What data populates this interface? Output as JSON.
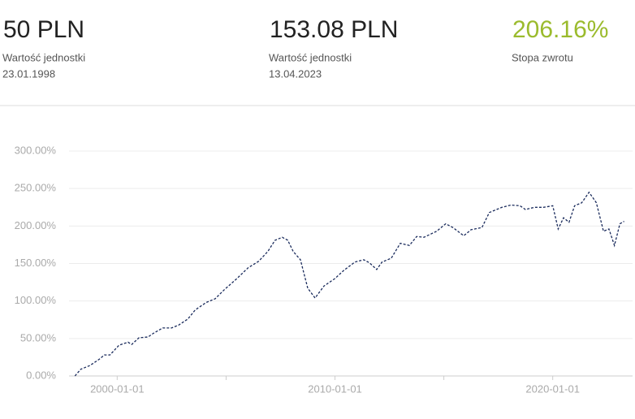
{
  "header": {
    "stats": [
      {
        "value": "50 PLN",
        "label": "Wartość jednostki",
        "date": "23.01.1998"
      },
      {
        "value": "153.08 PLN",
        "label": "Wartość jednostki",
        "date": "13.04.2023"
      },
      {
        "value": "206.16%",
        "label": "Stopa zwrotu",
        "color": "#9bbb2d"
      }
    ]
  },
  "chart_data": {
    "type": "line",
    "x": [
      "1998-01-23",
      "1998-05-01",
      "1998-10-01",
      "1999-03-01",
      "1999-06-01",
      "1999-09-01",
      "2000-02-01",
      "2000-07-01",
      "2000-09-01",
      "2001-01-01",
      "2001-06-01",
      "2001-09-01",
      "2002-02-01",
      "2002-07-01",
      "2002-11-01",
      "2003-04-01",
      "2003-08-01",
      "2004-02-01",
      "2004-07-01",
      "2004-12-01",
      "2005-07-01",
      "2006-01-01",
      "2006-07-01",
      "2006-12-01",
      "2007-04-01",
      "2007-08-01",
      "2007-11-01",
      "2008-02-01",
      "2008-06-01",
      "2008-10-01",
      "2009-02-01",
      "2009-07-01",
      "2010-01-01",
      "2010-06-01",
      "2010-12-01",
      "2011-05-01",
      "2011-08-01",
      "2011-12-01",
      "2012-03-01",
      "2012-08-01",
      "2013-01-01",
      "2013-06-01",
      "2013-10-01",
      "2014-02-01",
      "2014-09-01",
      "2015-02-01",
      "2015-06-01",
      "2015-12-01",
      "2016-04-01",
      "2016-10-01",
      "2017-02-01",
      "2017-09-01",
      "2018-02-01",
      "2018-07-01",
      "2018-10-01",
      "2019-03-01",
      "2019-08-01",
      "2020-01-01",
      "2020-04-01",
      "2020-07-01",
      "2020-10-01",
      "2021-01-01",
      "2021-05-01",
      "2021-09-01",
      "2022-01-01",
      "2022-05-01",
      "2022-08-01",
      "2022-11-01",
      "2023-02-01",
      "2023-04-13"
    ],
    "series": [
      {
        "color": "#1a2b5c",
        "values": [
          0,
          9,
          14,
          22,
          28,
          28,
          41,
          45,
          42,
          51,
          52,
          57,
          64,
          64,
          68,
          76,
          88,
          98,
          103,
          115,
          130,
          144,
          153,
          166,
          181,
          185,
          181,
          166,
          155,
          117,
          104,
          120,
          130,
          141,
          152,
          155,
          151,
          142,
          152,
          157,
          177,
          174,
          186,
          185,
          193,
          203,
          198,
          187,
          195,
          198,
          218,
          225,
          228,
          227,
          222,
          225,
          225,
          227,
          196,
          211,
          205,
          227,
          231,
          245,
          231,
          193,
          196,
          174,
          203,
          206.16
        ]
      }
    ],
    "xlim": [
      "1997-06-01",
      "2023-09-01"
    ],
    "xticks": [
      "2000-01-01",
      "2010-01-01",
      "2020-01-01"
    ],
    "xminor_ticks": [
      "2005-01-01",
      "2015-01-01"
    ],
    "ylim": [
      0,
      300
    ],
    "yticks": [
      {
        "value": 0,
        "label": "0.00%"
      },
      {
        "value": 50,
        "label": "50.00%"
      },
      {
        "value": 100,
        "label": "100.00%"
      },
      {
        "value": 150,
        "label": "150.00%"
      },
      {
        "value": 200,
        "label": "200.00%"
      },
      {
        "value": 250,
        "label": "250.00%"
      },
      {
        "value": 300,
        "label": "300.00%"
      }
    ],
    "grid": true
  }
}
